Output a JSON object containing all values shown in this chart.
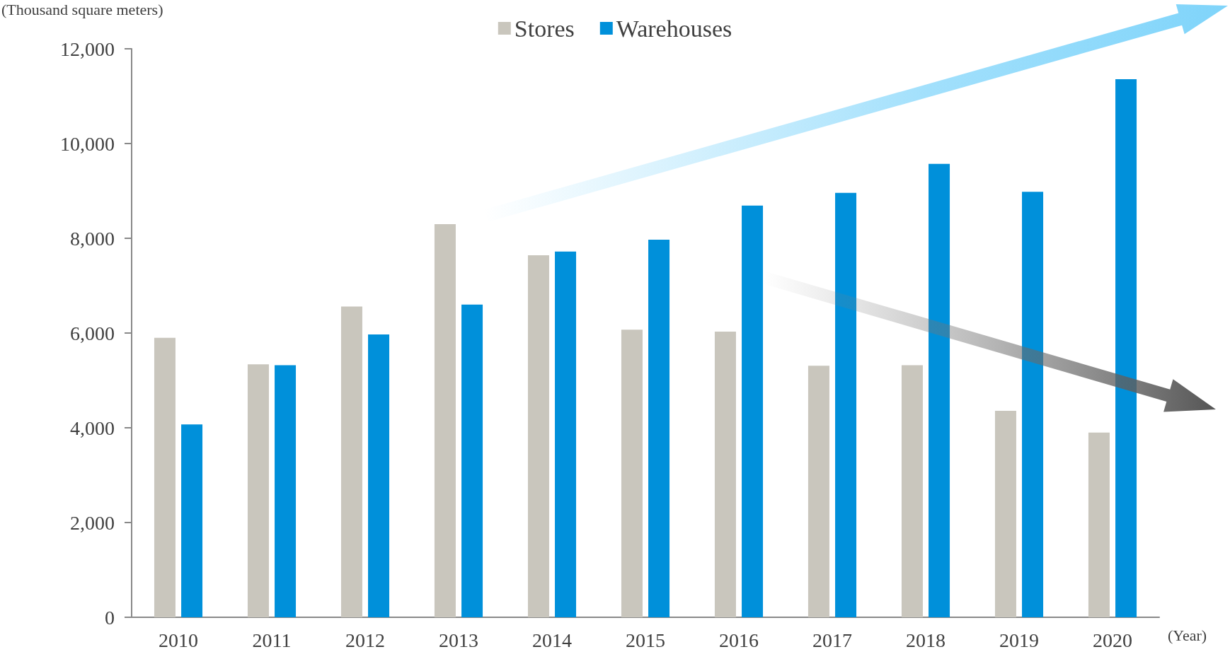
{
  "chart_data": {
    "type": "bar",
    "ylabel": "(Thousand square meters)",
    "xlabel": "(Year)",
    "categories": [
      "2010",
      "2011",
      "2012",
      "2013",
      "2014",
      "2015",
      "2016",
      "2017",
      "2018",
      "2019",
      "2020"
    ],
    "series": [
      {
        "name": "Stores",
        "color": "#c9c6bd",
        "values": [
          5900,
          5340,
          6560,
          8300,
          7640,
          6070,
          6030,
          5310,
          5320,
          4360,
          3900
        ]
      },
      {
        "name": "Warehouses",
        "color": "#0090da",
        "values": [
          4070,
          5320,
          5970,
          6600,
          7720,
          7970,
          8690,
          8960,
          9570,
          8980,
          11360
        ]
      }
    ],
    "ylim": [
      0,
      12000
    ],
    "yticks": [
      0,
      {
        "value": 2000,
        "label": "2,000"
      },
      {
        "value": 4000,
        "label": "4,000"
      },
      {
        "value": 6000,
        "label": "6,000"
      },
      {
        "value": 8000,
        "label": "8,000"
      },
      {
        "value": 10000,
        "label": "10,000"
      },
      {
        "value": 12000,
        "label": "12,000"
      }
    ],
    "grid": false,
    "legend": "top"
  }
}
